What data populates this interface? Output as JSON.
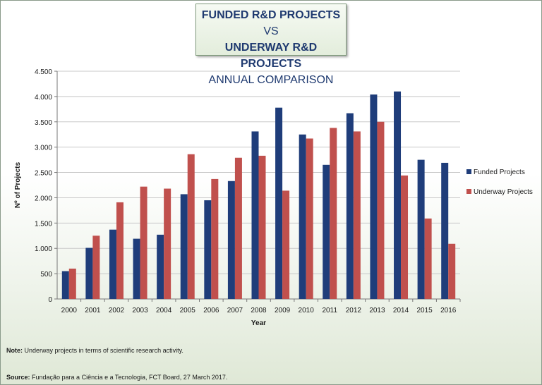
{
  "title": {
    "line1_bold": "FUNDED R&D PROJECTS",
    "line1_rest": " VS",
    "line2_bold": "UNDERWAY R&D PROJECTS",
    "line3": "ANNUAL COMPARISON"
  },
  "notes": {
    "note_label": "Note:",
    "note_text": " Underway projects in terms of scientific research activity.",
    "source_label": "Source:",
    "source_text": " Fundação para a Ciência e a Tecnologia, FCT Board, 27 March 2017."
  },
  "chart_data": {
    "type": "bar",
    "xlabel": "Year",
    "ylabel": "Nº of Projects",
    "ylim": [
      0,
      4500
    ],
    "yticks": [
      0,
      500,
      1000,
      1500,
      2000,
      2500,
      3000,
      3500,
      4000,
      4500
    ],
    "ytick_labels": [
      "0",
      "500",
      "1.000",
      "1.500",
      "2.000",
      "2.500",
      "3.000",
      "3.500",
      "4.000",
      "4.500"
    ],
    "grid": true,
    "legend_position": "right",
    "categories": [
      "2000",
      "2001",
      "2002",
      "2003",
      "2004",
      "2005",
      "2006",
      "2007",
      "2008",
      "2009",
      "2010",
      "2011",
      "2012",
      "2013",
      "2014",
      "2015",
      "2016"
    ],
    "series": [
      {
        "name": "Funded Projects",
        "color": "#1f3d7a",
        "values": [
          550,
          1010,
          1370,
          1190,
          1270,
          2070,
          1950,
          2330,
          3310,
          3780,
          3250,
          2650,
          3670,
          4040,
          4100,
          2750,
          2690
        ]
      },
      {
        "name": "Underway Projects",
        "color": "#c0504d",
        "values": [
          600,
          1250,
          1910,
          2220,
          2180,
          2860,
          2370,
          2790,
          2830,
          2140,
          3170,
          3380,
          3310,
          3500,
          2440,
          1590,
          1090
        ]
      }
    ]
  }
}
